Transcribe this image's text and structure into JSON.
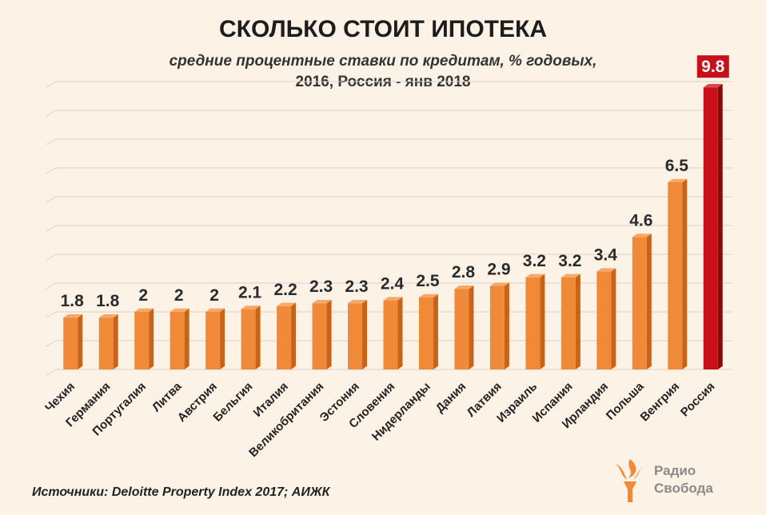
{
  "chart_data": {
    "type": "bar",
    "title": "СКОЛЬКО СТОИТ ИПОТЕКА",
    "subtitle_line1": "средние процентные ставки по кредитам, % годовых,",
    "subtitle_line2": "2016, Россия - янв 2018",
    "categories": [
      "Чехия",
      "Германия",
      "Португалия",
      "Литва",
      "Австрия",
      "Бельгия",
      "Италия",
      "Великобритания",
      "Эстония",
      "Словения",
      "Нидерланды",
      "Дания",
      "Латвия",
      "Израиль",
      "Испания",
      "Ирландия",
      "Польша",
      "Венгрия",
      "Россия"
    ],
    "values": [
      1.8,
      1.8,
      2,
      2,
      2,
      2.1,
      2.2,
      2.3,
      2.3,
      2.4,
      2.5,
      2.8,
      2.9,
      3.2,
      3.2,
      3.4,
      4.6,
      6.5,
      9.8
    ],
    "value_labels": [
      "1.8",
      "1.8",
      "2",
      "2",
      "2",
      "2.1",
      "2.2",
      "2.3",
      "2.3",
      "2.4",
      "2.5",
      "2.8",
      "2.9",
      "3.2",
      "3.2",
      "3.4",
      "4.6",
      "6.5",
      "9.8"
    ],
    "highlight_index": 18,
    "ylim": [
      0,
      10
    ],
    "grid": true,
    "colors": {
      "bar": "#f08a38",
      "bar_side": "#c8641a",
      "bar_top": "#f5a868",
      "highlight": "#c8101a",
      "highlight_side": "#8a0a10",
      "highlight_top": "#d84848",
      "grid": "#d8d2cc"
    }
  },
  "source": "Источники: Deloitte Property Index 2017; АИЖК",
  "logo": {
    "icon": "torch-icon",
    "line1": "Радио",
    "line2": "Свобода"
  }
}
